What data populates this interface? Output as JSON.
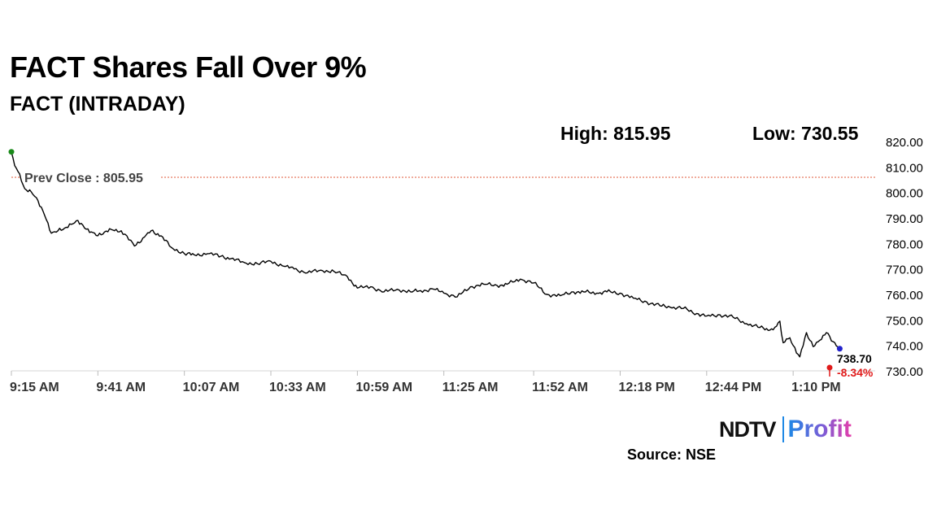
{
  "header": {
    "title": "FACT Shares Fall Over 9%",
    "subtitle": "FACT (INTRADAY)",
    "high_label": "High: 815.95",
    "low_label": "Low: 730.55"
  },
  "chart_data": {
    "type": "line",
    "x": [
      "9:15 AM",
      "9:16 AM",
      "9:17 AM",
      "9:19 AM",
      "9:21 AM",
      "9:23 AM",
      "9:25 AM",
      "9:27 AM",
      "9:29 AM",
      "9:31 AM",
      "9:33 AM",
      "9:35 AM",
      "9:37 AM",
      "9:39 AM",
      "9:41 AM",
      "9:43 AM",
      "9:45 AM",
      "9:48 AM",
      "9:52 AM",
      "9:55 AM",
      "9:57 AM",
      "10:00 AM",
      "10:03 AM",
      "10:07 AM",
      "10:10 AM",
      "10:14 AM",
      "10:18 AM",
      "10:21 AM",
      "10:25 AM",
      "10:29 AM",
      "10:33 AM",
      "10:37 AM",
      "10:40 AM",
      "10:44 AM",
      "10:48 AM",
      "10:52 AM",
      "10:56 AM",
      "10:59 AM",
      "11:03 AM",
      "11:07 AM",
      "11:11 AM",
      "11:15 AM",
      "11:18 AM",
      "11:22 AM",
      "11:25 AM",
      "11:29 AM",
      "11:33 AM",
      "11:37 AM",
      "11:41 AM",
      "11:44 AM",
      "11:48 AM",
      "11:52 AM",
      "11:56 AM",
      "12:00 PM",
      "12:04 PM",
      "12:07 PM",
      "12:11 PM",
      "12:14 PM",
      "12:18 PM",
      "12:22 PM",
      "12:26 PM",
      "12:30 PM",
      "12:33 PM",
      "12:37 PM",
      "12:41 PM",
      "12:44 PM",
      "12:48 PM",
      "12:52 PM",
      "12:56 PM",
      "1:00 PM",
      "1:03 PM",
      "1:05 PM",
      "1:06 PM",
      "1:07 PM",
      "1:09 PM",
      "1:10 PM",
      "1:11 PM",
      "1:12 PM",
      "1:14 PM",
      "1:16 PM",
      "1:18 PM",
      "1:20 PM",
      "1:22 PM",
      "1:24 PM"
    ],
    "series": [
      {
        "values": [
          815.95,
          810.5,
          808.2,
          801.5,
          800.2,
          796.8,
          791.0,
          784.0,
          785.0,
          786.0,
          787.5,
          789.0,
          786.0,
          784.5,
          783.0,
          784.5,
          785.5,
          785.0,
          779.0,
          782.5,
          785.0,
          783.0,
          778.5,
          776.0,
          775.5,
          776.0,
          775.0,
          774.0,
          772.5,
          772.0,
          773.0,
          771.0,
          770.0,
          768.5,
          769.5,
          769.0,
          767.0,
          762.5,
          763.0,
          761.0,
          762.0,
          761.0,
          761.5,
          762.0,
          760.5,
          759.0,
          763.0,
          764.0,
          763.5,
          764.0,
          766.0,
          764.5,
          760.0,
          759.5,
          761.0,
          761.0,
          760.5,
          761.0,
          760.5,
          758.5,
          757.0,
          755.5,
          755.0,
          754.5,
          752.5,
          751.5,
          752.0,
          751.0,
          748.5,
          747.0,
          746.0,
          747.5,
          749.5,
          741.0,
          743.0,
          740.0,
          737.0,
          735.5,
          745.0,
          739.5,
          742.0,
          745.0,
          741.5,
          738.7
        ]
      }
    ],
    "ylim": [
      730,
      820
    ],
    "yticks": [
      "820.00",
      "810.00",
      "800.00",
      "790.00",
      "780.00",
      "770.00",
      "760.00",
      "750.00",
      "740.00",
      "730.00"
    ],
    "xticks": [
      "9:15 AM",
      "9:41 AM",
      "10:07 AM",
      "10:33 AM",
      "10:59 AM",
      "11:25 AM",
      "11:52 AM",
      "12:18 PM",
      "12:44 PM",
      "1:10 PM"
    ],
    "prev_close": 805.95,
    "prev_close_label": "Prev Close : 805.95",
    "last_value_label": "738.70",
    "change_label": "-8.34%",
    "grid": false,
    "colors": {
      "line": "#000000",
      "prev_close_line": "#e05a3a",
      "start_marker": "#1a8a1a",
      "end_marker": "#2222cc",
      "change": "#e01a1a"
    }
  },
  "footer": {
    "logo_ndtv": "NDTV",
    "logo_profit": "Profit",
    "source": "Source: NSE"
  }
}
